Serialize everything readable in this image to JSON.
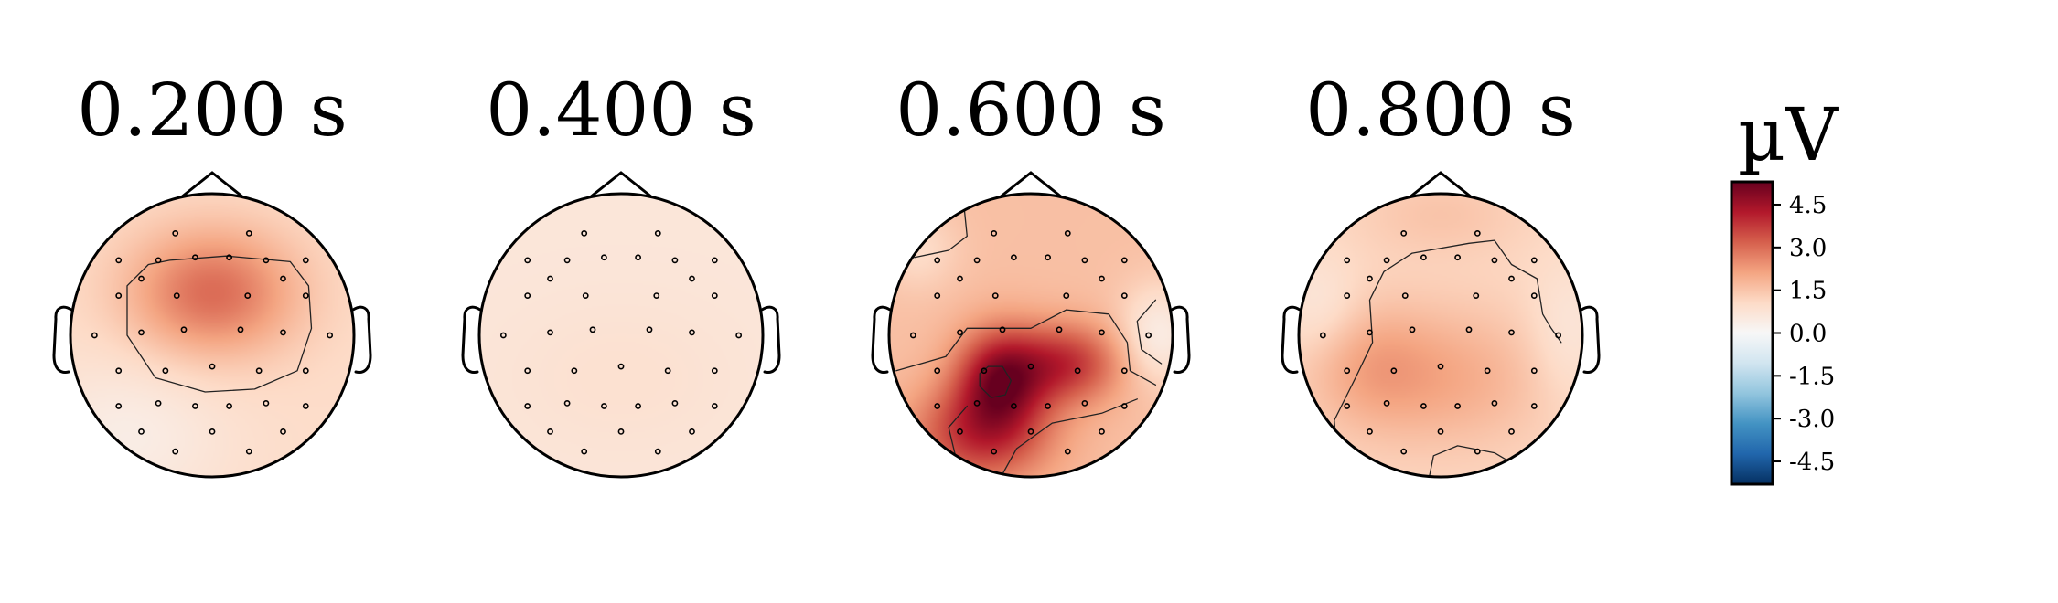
{
  "chart_data": {
    "type": "heatmap",
    "description": "EEG scalp topographic maps",
    "colormap": "RdBu_r",
    "vlim": [
      -5.3,
      5.3
    ],
    "colorbar": {
      "unit": "µV",
      "ticks": [
        4.5,
        3.0,
        1.5,
        0.0,
        -1.5,
        -3.0,
        -4.5
      ],
      "tick_labels": [
        "4.5",
        "3.0",
        "1.5",
        "0.0",
        "-1.5",
        "-3.0",
        "-4.5"
      ]
    },
    "panels": [
      {
        "title": "0.200 s",
        "time_s": 0.2,
        "base_uv": 1.0,
        "blobs": [
          {
            "x": 0.0,
            "y": 0.3,
            "sx": 0.42,
            "sy": 0.32,
            "amp": 2.0
          },
          {
            "x": -0.6,
            "y": -0.7,
            "sx": 0.5,
            "sy": 0.4,
            "amp": -0.6
          }
        ],
        "contours": [
          {
            "level_uv": 1.5,
            "path": [
              [
                -0.3,
                0.53
              ],
              [
                0.1,
                0.56
              ],
              [
                0.55,
                0.52
              ],
              [
                0.68,
                0.35
              ],
              [
                0.7,
                0.05
              ],
              [
                0.6,
                -0.25
              ],
              [
                0.3,
                -0.38
              ],
              [
                -0.05,
                -0.4
              ],
              [
                -0.4,
                -0.3
              ],
              [
                -0.6,
                0.0
              ],
              [
                -0.6,
                0.35
              ],
              [
                -0.45,
                0.5
              ]
            ],
            "closed": true
          }
        ]
      },
      {
        "title": "0.400 s",
        "time_s": 0.4,
        "base_uv": 0.65,
        "blobs": [
          {
            "x": 0.0,
            "y": -0.3,
            "sx": 0.6,
            "sy": 0.4,
            "amp": 0.2
          }
        ],
        "contours": []
      },
      {
        "title": "0.600 s",
        "time_s": 0.6,
        "base_uv": 1.6,
        "blobs": [
          {
            "x": -0.22,
            "y": -0.3,
            "sx": 0.22,
            "sy": 0.25,
            "amp": 2.8
          },
          {
            "x": 0.25,
            "y": -0.2,
            "sx": 0.28,
            "sy": 0.2,
            "amp": 2.2
          },
          {
            "x": -0.35,
            "y": -0.7,
            "sx": 0.35,
            "sy": 0.25,
            "amp": 2.2
          },
          {
            "x": 0.9,
            "y": 0.0,
            "sx": 0.2,
            "sy": 0.25,
            "amp": -1.2
          },
          {
            "x": -0.8,
            "y": 0.6,
            "sx": 0.2,
            "sy": 0.2,
            "amp": -0.6
          }
        ],
        "contours": [
          {
            "level_uv": 1.5,
            "path": [
              [
                -0.48,
                1.0
              ],
              [
                -0.45,
                0.7
              ],
              [
                -0.58,
                0.6
              ],
              [
                -0.82,
                0.55
              ]
            ],
            "closed": false
          },
          {
            "level_uv": 1.5,
            "path": [
              [
                0.88,
                0.25
              ],
              [
                0.75,
                0.1
              ],
              [
                0.78,
                -0.1
              ],
              [
                0.92,
                -0.2
              ]
            ],
            "closed": false
          },
          {
            "level_uv": 3.0,
            "path": [
              [
                -0.95,
                -0.25
              ],
              [
                -0.6,
                -0.15
              ],
              [
                -0.45,
                0.05
              ],
              [
                0.0,
                0.05
              ],
              [
                0.25,
                0.18
              ],
              [
                0.55,
                0.15
              ],
              [
                0.68,
                -0.05
              ],
              [
                0.7,
                -0.25
              ],
              [
                0.88,
                -0.35
              ]
            ],
            "closed": false
          },
          {
            "level_uv": 3.0,
            "path": [
              [
                -0.52,
                -0.9
              ],
              [
                -0.58,
                -0.65
              ],
              [
                -0.45,
                -0.5
              ]
            ],
            "closed": false
          },
          {
            "level_uv": 3.0,
            "path": [
              [
                -0.2,
                -0.98
              ],
              [
                -0.1,
                -0.8
              ],
              [
                0.15,
                -0.62
              ],
              [
                0.5,
                -0.55
              ],
              [
                0.75,
                -0.45
              ]
            ],
            "closed": false
          },
          {
            "level_uv": 4.5,
            "path": [
              [
                -0.3,
                -0.22
              ],
              [
                -0.2,
                -0.22
              ],
              [
                -0.14,
                -0.32
              ],
              [
                -0.18,
                -0.42
              ],
              [
                -0.28,
                -0.44
              ],
              [
                -0.36,
                -0.36
              ],
              [
                -0.36,
                -0.27
              ]
            ],
            "closed": true
          }
        ]
      },
      {
        "title": "0.800 s",
        "time_s": 0.8,
        "base_uv": 1.1,
        "blobs": [
          {
            "x": 0.0,
            "y": -0.3,
            "sx": 0.55,
            "sy": 0.35,
            "amp": 0.9
          },
          {
            "x": -0.5,
            "y": -0.2,
            "sx": 0.3,
            "sy": 0.3,
            "amp": 0.6
          },
          {
            "x": 0.0,
            "y": 0.85,
            "sx": 0.4,
            "sy": 0.2,
            "amp": 0.4
          },
          {
            "x": 0.9,
            "y": 0.0,
            "sx": 0.2,
            "sy": 0.35,
            "amp": -0.5
          },
          {
            "x": -0.85,
            "y": 0.2,
            "sx": 0.2,
            "sy": 0.25,
            "amp": -0.5
          }
        ],
        "contours": [
          {
            "level_uv": 1.5,
            "path": [
              [
                -0.72,
                -0.95
              ],
              [
                -0.75,
                -0.6
              ],
              [
                -0.6,
                -0.3
              ],
              [
                -0.48,
                -0.05
              ],
              [
                -0.5,
                0.25
              ],
              [
                -0.4,
                0.45
              ],
              [
                -0.2,
                0.58
              ],
              [
                0.2,
                0.65
              ],
              [
                0.38,
                0.67
              ],
              [
                0.5,
                0.5
              ],
              [
                0.68,
                0.4
              ],
              [
                0.72,
                0.15
              ],
              [
                0.78,
                0.05
              ],
              [
                0.85,
                -0.05
              ]
            ],
            "closed": false
          },
          {
            "level_uv": 1.5,
            "path": [
              [
                -0.08,
                -1.0
              ],
              [
                -0.05,
                -0.85
              ],
              [
                0.12,
                -0.78
              ],
              [
                0.38,
                -0.83
              ],
              [
                0.5,
                -0.9
              ]
            ],
            "closed": false
          }
        ]
      }
    ],
    "sensors": [
      [
        -0.26,
        0.72
      ],
      [
        0.26,
        0.72
      ],
      [
        -0.66,
        0.53
      ],
      [
        -0.38,
        0.53
      ],
      [
        -0.12,
        0.55
      ],
      [
        0.12,
        0.55
      ],
      [
        0.38,
        0.53
      ],
      [
        0.66,
        0.53
      ],
      [
        -0.5,
        0.4
      ],
      [
        0.5,
        0.4
      ],
      [
        -0.66,
        0.28
      ],
      [
        -0.25,
        0.28
      ],
      [
        0.25,
        0.28
      ],
      [
        0.66,
        0.28
      ],
      [
        -0.83,
        0.0
      ],
      [
        -0.5,
        0.02
      ],
      [
        -0.2,
        0.04
      ],
      [
        0.2,
        0.04
      ],
      [
        0.5,
        0.02
      ],
      [
        0.83,
        0.0
      ],
      [
        -0.66,
        -0.25
      ],
      [
        -0.33,
        -0.25
      ],
      [
        0.0,
        -0.22
      ],
      [
        0.33,
        -0.25
      ],
      [
        0.66,
        -0.25
      ],
      [
        -0.66,
        -0.5
      ],
      [
        -0.38,
        -0.48
      ],
      [
        -0.12,
        -0.5
      ],
      [
        0.12,
        -0.5
      ],
      [
        0.38,
        -0.48
      ],
      [
        0.66,
        -0.5
      ],
      [
        -0.5,
        -0.68
      ],
      [
        0.0,
        -0.68
      ],
      [
        0.5,
        -0.68
      ],
      [
        -0.26,
        -0.82
      ],
      [
        0.26,
        -0.82
      ]
    ]
  }
}
